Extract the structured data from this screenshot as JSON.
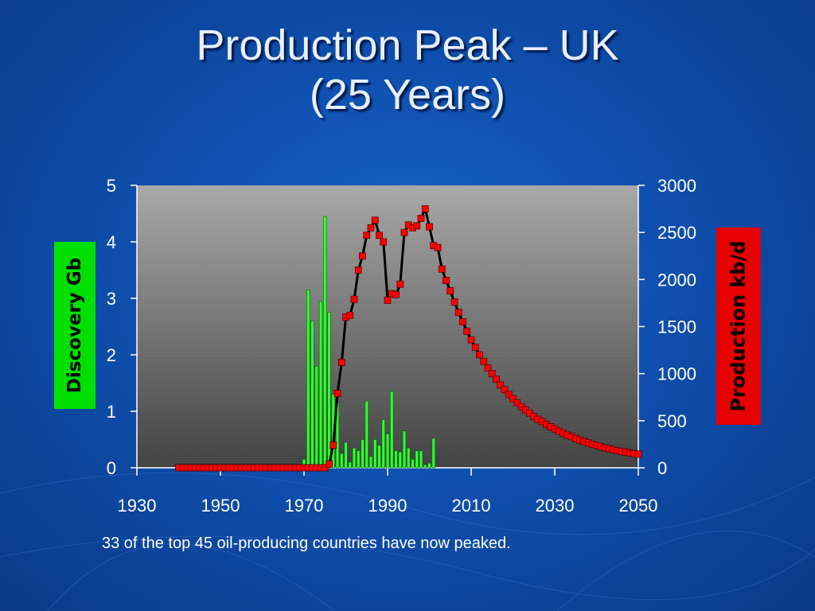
{
  "slide": {
    "title_line1": "Production Peak – UK",
    "title_line2": "(25 Years)",
    "caption": "33 of the top 45 oil-producing countries have now peaked."
  },
  "colors": {
    "discovery_bar": "#33ff33",
    "production_marker": "#ff0000",
    "production_line": "#000000",
    "y_label_bg": "#00e000",
    "y2_label_bg": "#e60000"
  },
  "chart_data": {
    "type": "bar",
    "title": "",
    "xlabel": "",
    "ylabel": "Discovery Gb",
    "y2label": "Production kb/d",
    "xlim": [
      1930,
      2050
    ],
    "ylim": [
      0,
      5
    ],
    "y2lim": [
      0,
      3000
    ],
    "x_ticks": [
      1930,
      1950,
      1970,
      1990,
      2010,
      2030,
      2050
    ],
    "y_ticks": [
      0,
      1,
      2,
      3,
      4,
      5
    ],
    "y2_ticks": [
      0,
      500,
      1000,
      1500,
      2000,
      2500,
      3000
    ],
    "grid": true,
    "legend": "none",
    "series": [
      {
        "axis": "left",
        "kind": "bar",
        "x": [
          1970,
          1971,
          1972,
          1973,
          1974,
          1975,
          1976,
          1977,
          1978,
          1979,
          1980,
          1981,
          1982,
          1983,
          1984,
          1985,
          1986,
          1987,
          1988,
          1989,
          1990,
          1991,
          1992,
          1993,
          1994,
          1995,
          1996,
          1997,
          1998,
          1999,
          2000,
          2001
        ],
        "values": [
          0.15,
          3.15,
          2.6,
          1.8,
          2.95,
          4.45,
          2.75,
          1.3,
          1.15,
          0.25,
          0.45,
          0.1,
          0.35,
          0.3,
          0.5,
          1.18,
          0.2,
          0.5,
          0.4,
          0.85,
          0.6,
          1.35,
          0.3,
          0.28,
          0.65,
          0.35,
          0.15,
          0.3,
          0.3,
          0.05,
          0.08,
          0.52
        ]
      },
      {
        "axis": "right",
        "kind": "line",
        "x": [
          1940,
          1941,
          1942,
          1943,
          1944,
          1945,
          1946,
          1947,
          1948,
          1949,
          1950,
          1951,
          1952,
          1953,
          1954,
          1955,
          1956,
          1957,
          1958,
          1959,
          1960,
          1961,
          1962,
          1963,
          1964,
          1965,
          1966,
          1967,
          1968,
          1969,
          1970,
          1971,
          1972,
          1973,
          1974,
          1975,
          1976,
          1977,
          1978,
          1979,
          1980,
          1981,
          1982,
          1983,
          1984,
          1985,
          1986,
          1987,
          1988,
          1989,
          1990,
          1991,
          1992,
          1993,
          1994,
          1995,
          1996,
          1997,
          1998,
          1999,
          2000,
          2001,
          2002,
          2003,
          2004,
          2005,
          2006,
          2007,
          2008,
          2009,
          2010,
          2011,
          2012,
          2013,
          2014,
          2015,
          2016,
          2017,
          2018,
          2019,
          2020,
          2021,
          2022,
          2023,
          2024,
          2025,
          2026,
          2027,
          2028,
          2029,
          2030,
          2031,
          2032,
          2033,
          2034,
          2035,
          2036,
          2037,
          2038,
          2039,
          2040,
          2041,
          2042,
          2043,
          2044,
          2045,
          2046,
          2047,
          2048,
          2049,
          2050
        ],
        "values": [
          0,
          0,
          0,
          0,
          0,
          0,
          0,
          0,
          0,
          0,
          0,
          0,
          0,
          0,
          0,
          0,
          0,
          0,
          0,
          0,
          0,
          0,
          0,
          0,
          0,
          0,
          0,
          0,
          0,
          0,
          0,
          0,
          0,
          0,
          0,
          0,
          40,
          240,
          790,
          1120,
          1600,
          1620,
          1790,
          2100,
          2250,
          2470,
          2550,
          2630,
          2470,
          2400,
          1780,
          1850,
          1840,
          1950,
          2500,
          2580,
          2550,
          2570,
          2650,
          2750,
          2560,
          2360,
          2340,
          2110,
          1990,
          1880,
          1760,
          1650,
          1550,
          1450,
          1360,
          1280,
          1200,
          1130,
          1060,
          1000,
          940,
          880,
          830,
          780,
          735,
          690,
          650,
          615,
          580,
          545,
          515,
          490,
          460,
          435,
          412,
          390,
          368,
          348,
          330,
          312,
          295,
          279,
          264,
          250,
          237,
          225,
          213,
          202,
          192,
          183,
          174,
          166,
          158,
          151,
          145
        ]
      }
    ]
  }
}
